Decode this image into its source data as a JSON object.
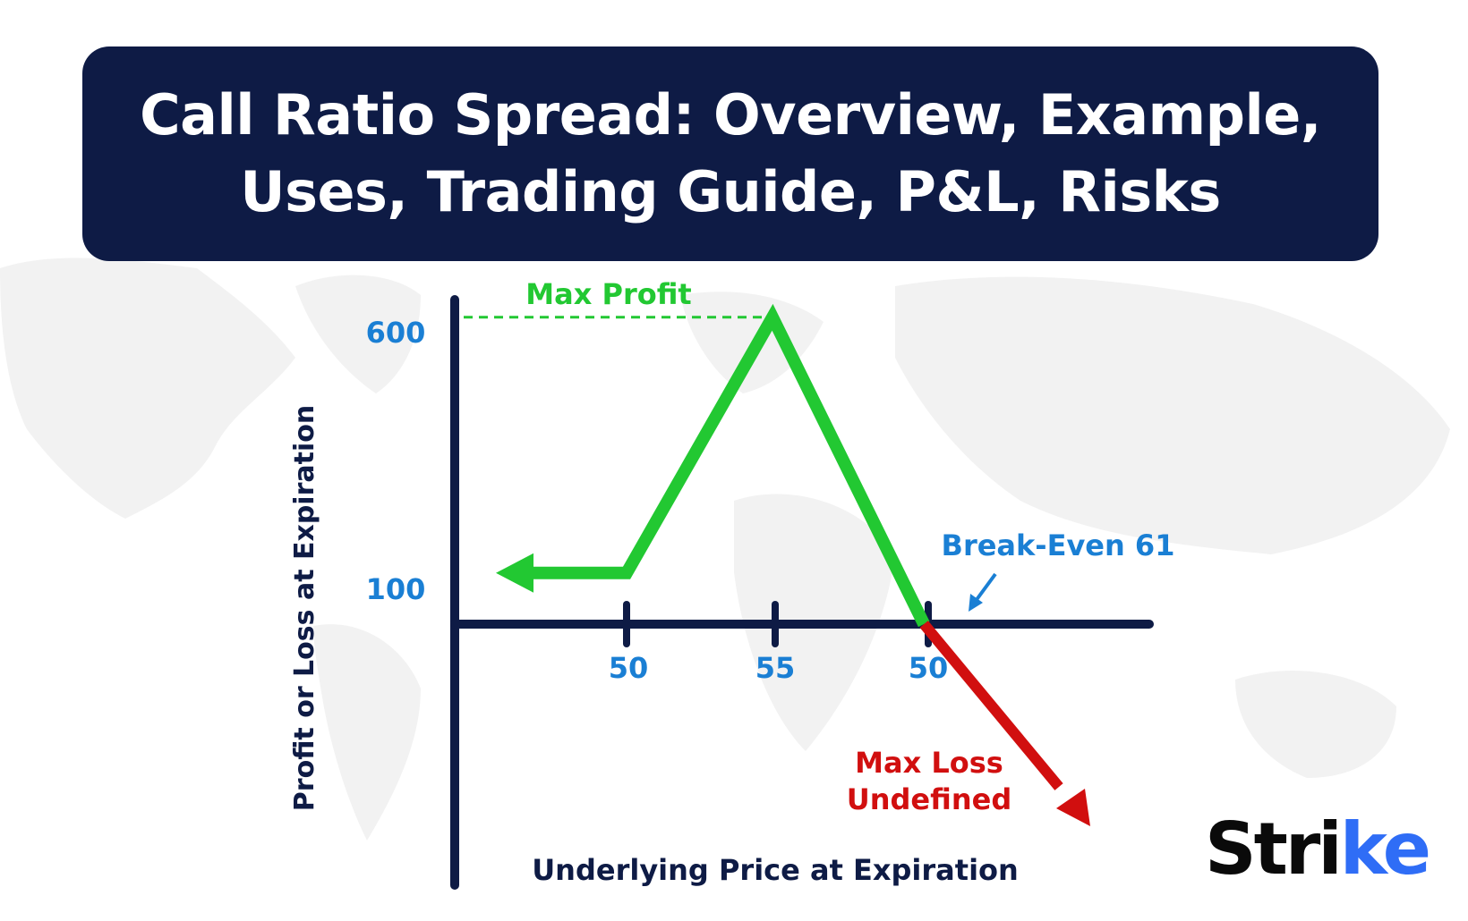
{
  "title": {
    "line1": "Call Ratio Spread: Overview, Example,",
    "line2": "Uses, Trading Guide, P&L, Risks"
  },
  "brand": {
    "text": "Stri",
    "accent_text": "ke",
    "accent_color": "#2f6df6"
  },
  "colors": {
    "banner": "#0e1b45",
    "axis": "#0e1b45",
    "profit": "#22c832",
    "loss": "#d10f0f",
    "tick_label": "#1a7fd4"
  },
  "chart_data": {
    "type": "line",
    "xlabel": "Underlying Price at Expiration",
    "ylabel": "Profit or Loss at Expiration",
    "x_ticks": [
      "50",
      "55",
      "50"
    ],
    "y_ticks": [
      "600",
      "100"
    ],
    "max_profit_label": "Max Profit",
    "max_profit_value": 600,
    "breakeven_label": "Break-Even 61",
    "max_loss_label": [
      "Max Loss",
      "Undefined"
    ],
    "payoff_points": [
      {
        "x": 45,
        "y": 100
      },
      {
        "x": 50,
        "y": 100
      },
      {
        "x": 55,
        "y": 600
      },
      {
        "x": 61,
        "y": 0
      },
      {
        "x": 65,
        "y": -500
      }
    ]
  }
}
